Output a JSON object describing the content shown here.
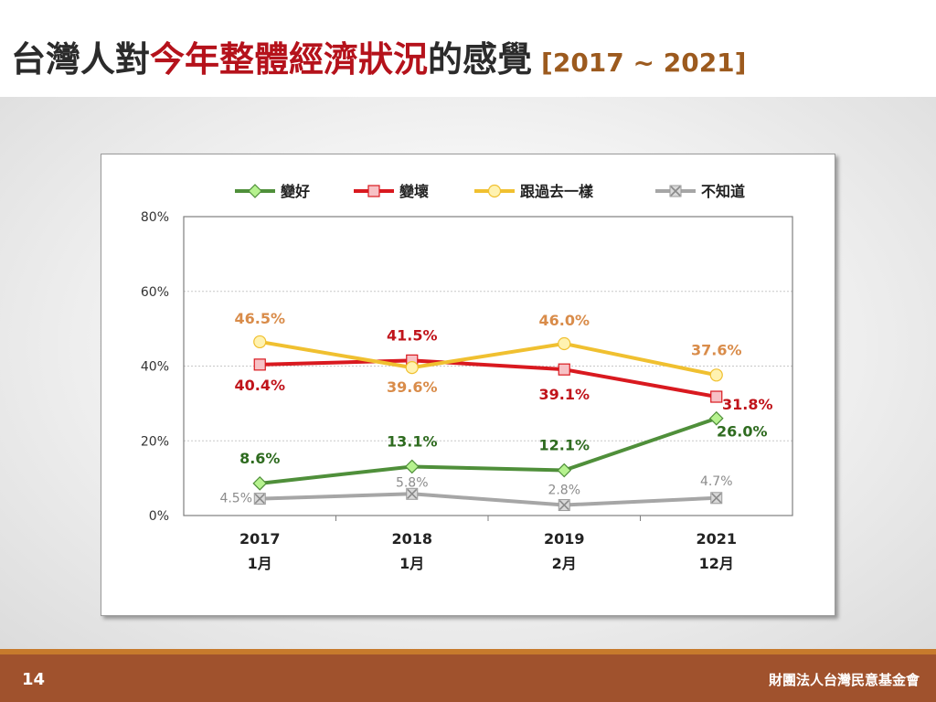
{
  "title": {
    "part1": "台灣人對",
    "part2": "今年整體經濟狀況",
    "part3": "的感覺",
    "range": "[2017 ~ 2021]"
  },
  "footer": {
    "page_number": "14",
    "organization": "財團法人台灣民意基金會"
  },
  "chart_data": {
    "type": "line",
    "categories": [
      "2017\n1月",
      "2018\n1月",
      "2019\n2月",
      "2021\n12月"
    ],
    "category_years": [
      "2017",
      "2018",
      "2019",
      "2021"
    ],
    "category_months": [
      "1月",
      "1月",
      "2月",
      "12月"
    ],
    "ylim": [
      0,
      80
    ],
    "yticks": [
      "0%",
      "20%",
      "40%",
      "60%",
      "80%"
    ],
    "ytick_values": [
      0,
      20,
      40,
      60,
      80
    ],
    "grid": true,
    "legend_position": "top",
    "series": [
      {
        "name": "變好",
        "values": [
          8.6,
          13.1,
          12.1,
          26.0
        ],
        "labels": [
          "8.6%",
          "13.1%",
          "12.1%",
          "26.0%"
        ],
        "color": "#4f8f3a",
        "marker": "diamond",
        "marker_fill": "#b6f28f",
        "label_color": "#2e6b1f"
      },
      {
        "name": "變壞",
        "values": [
          40.4,
          41.5,
          39.1,
          31.8
        ],
        "labels": [
          "40.4%",
          "41.5%",
          "39.1%",
          "31.8%"
        ],
        "color": "#d9191f",
        "marker": "square",
        "marker_fill": "#f7c1c5",
        "label_color": "#c0131a"
      },
      {
        "name": "跟過去一樣",
        "values": [
          46.5,
          39.6,
          46.0,
          37.6
        ],
        "labels": [
          "46.5%",
          "39.6%",
          "46.0%",
          "37.6%"
        ],
        "color": "#f0c030",
        "marker": "circle",
        "marker_fill": "#fff2b0",
        "label_color": "#d98c4a"
      },
      {
        "name": "不知道",
        "values": [
          4.5,
          5.8,
          2.8,
          4.7
        ],
        "labels": [
          "4.5%",
          "5.8%",
          "2.8%",
          "4.7%"
        ],
        "color": "#a6a6a6",
        "marker": "x",
        "marker_fill": "#d9d9d9",
        "label_color": "#8c8c8c"
      }
    ]
  }
}
